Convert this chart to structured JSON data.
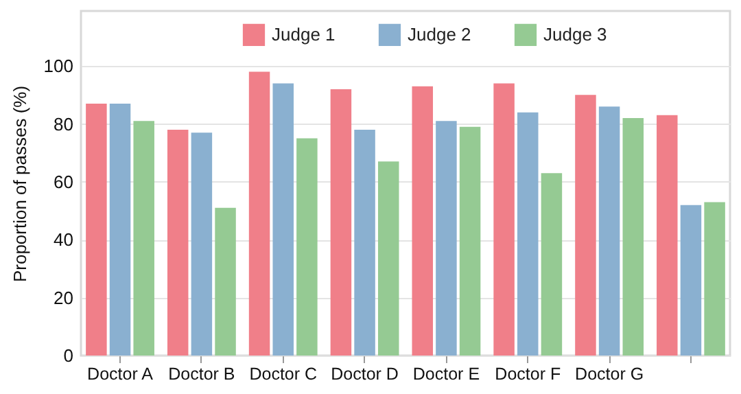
{
  "chart_data": {
    "type": "bar",
    "ylabel": "Proportion of passes (%)",
    "categories": [
      "Doctor A",
      "Doctor B",
      "Doctor C",
      "Doctor D",
      "Doctor E",
      "Doctor F",
      "Doctor G",
      null
    ],
    "series": [
      {
        "name": "Judge 1",
        "color": "#f07f89",
        "values": [
          87,
          78,
          98,
          92,
          93,
          94,
          90,
          83
        ]
      },
      {
        "name": "Judge 2",
        "color": "#8ab0d0",
        "values": [
          87,
          77,
          94,
          78,
          81,
          84,
          86,
          52
        ]
      },
      {
        "name": "Judge 3",
        "color": "#95ca93",
        "values": [
          81,
          51,
          75,
          67,
          79,
          63,
          82,
          53
        ]
      }
    ],
    "ylim": [
      0,
      119
    ],
    "yticks": [
      0,
      20,
      40,
      60,
      80,
      100
    ],
    "grid": "y",
    "legend": "top"
  }
}
